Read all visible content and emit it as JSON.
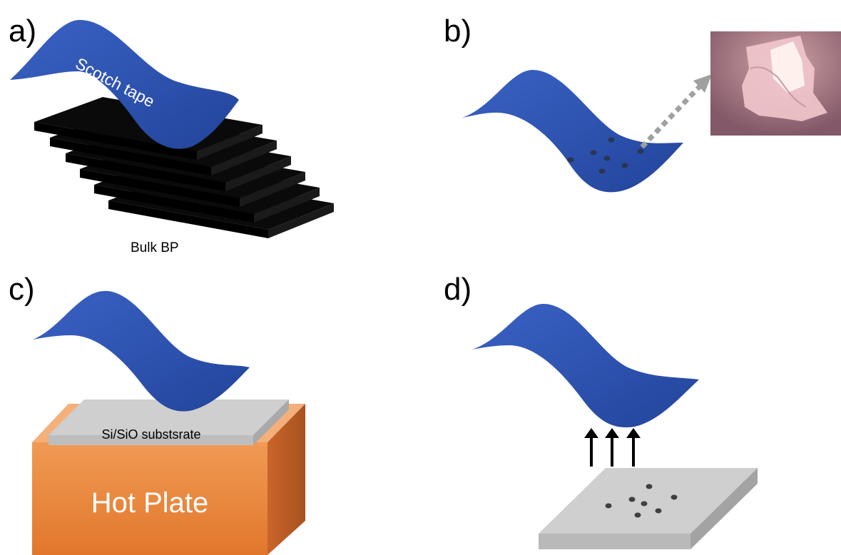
{
  "panels": {
    "a": {
      "label": "a)",
      "tape_label": "Scotch tape",
      "bulk_label": "Bulk BP"
    },
    "b": {
      "label": "b)"
    },
    "c": {
      "label": "c)",
      "substrate_label": "Si/SiO substsrate",
      "hotplate_label": "Hot Plate"
    },
    "d": {
      "label": "d)"
    }
  },
  "colors": {
    "tape": "#2f55b4",
    "tape_dark": "#1f3f92",
    "bp_layer": "#0a0a0a",
    "substrate": "#d0d0d0",
    "hotplate": "#ea8a40",
    "flake": "#303a4a",
    "arrow": "#a0a0a0"
  }
}
